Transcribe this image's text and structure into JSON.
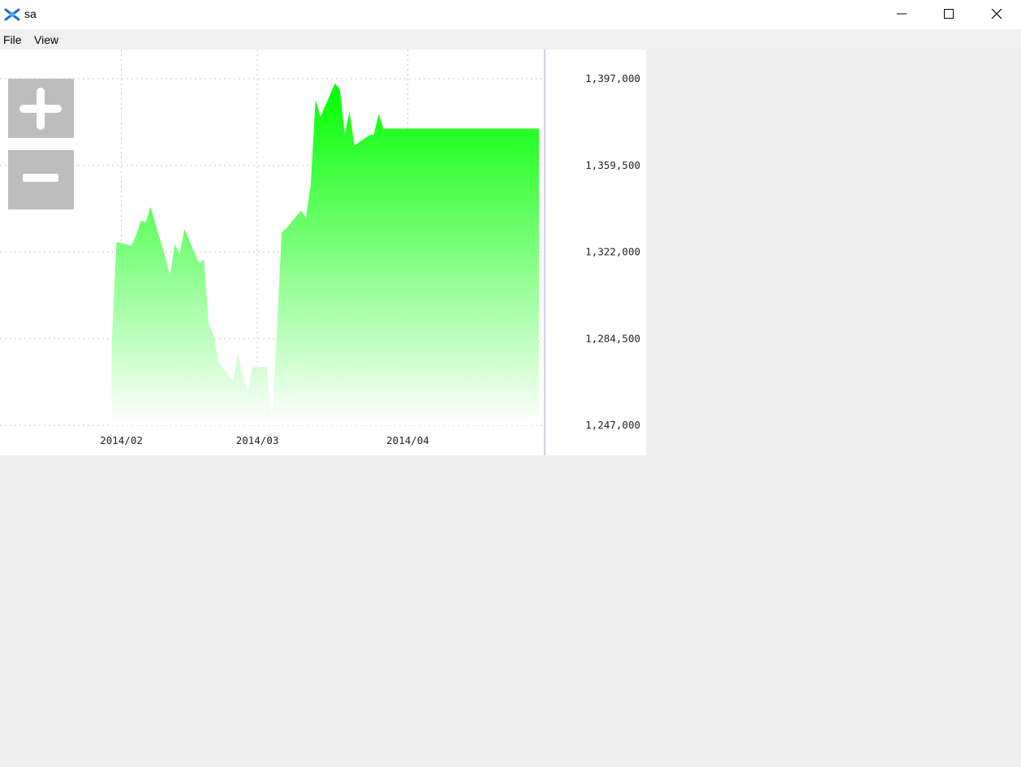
{
  "window": {
    "title": "sa",
    "controls": [
      "minimize-icon",
      "maximize-icon",
      "close-icon"
    ]
  },
  "menu": {
    "items": [
      {
        "label": "File"
      },
      {
        "label": "View"
      }
    ]
  },
  "toolbar": {
    "zoom_in_icon": "plus-icon",
    "zoom_out_icon": "minus-icon"
  },
  "chart_data": {
    "type": "area",
    "title": "",
    "xlabel": "",
    "ylabel": "",
    "x_tick_labels": [
      "2014/02",
      "2014/03",
      "2014/04"
    ],
    "x_ticks": [
      "2014-02-01",
      "2014-03-01",
      "2014-04-01"
    ],
    "xlim": [
      "2014-01-07",
      "2014-04-29"
    ],
    "y_tick_labels": [
      "1,397,000",
      "1,359,500",
      "1,322,000",
      "1,284,500",
      "1,247,000"
    ],
    "y_ticks": [
      1397000,
      1359500,
      1322000,
      1284500,
      1247000
    ],
    "ylim": [
      1247000,
      1397000
    ],
    "grid": true,
    "fill_gradient": [
      "#00ff00",
      "#ffffff"
    ],
    "series": [
      {
        "x": [
          "2014-01-30",
          "2014-01-31",
          "2014-02-03",
          "2014-02-04",
          "2014-02-05",
          "2014-02-06",
          "2014-02-07",
          "2014-02-10",
          "2014-02-11",
          "2014-02-12",
          "2014-02-13",
          "2014-02-14",
          "2014-02-17",
          "2014-02-18",
          "2014-02-19",
          "2014-02-20",
          "2014-02-21",
          "2014-02-24",
          "2014-02-25",
          "2014-02-26",
          "2014-02-27",
          "2014-02-28",
          "2014-03-03",
          "2014-03-04",
          "2014-03-05",
          "2014-03-06",
          "2014-03-07",
          "2014-03-10",
          "2014-03-11",
          "2014-03-12",
          "2014-03-13",
          "2014-03-14",
          "2014-03-17",
          "2014-03-18",
          "2014-03-19",
          "2014-03-20",
          "2014-03-21",
          "2014-03-24",
          "2014-03-25",
          "2014-03-26",
          "2014-03-27",
          "2014-03-28",
          "2014-03-31",
          "2014-04-01",
          "2014-04-02",
          "2014-04-03",
          "2014-04-04",
          "2014-04-07",
          "2014-04-08",
          "2014-04-09",
          "2014-04-10",
          "2014-04-11",
          "2014-04-14",
          "2014-04-15",
          "2014-04-16",
          "2014-04-17",
          "2014-04-18",
          "2014-04-21",
          "2014-04-22",
          "2014-04-23",
          "2014-04-24",
          "2014-04-25",
          "2014-04-28"
        ],
        "values": [
          1282500,
          1326400,
          1324800,
          1329000,
          1335500,
          1334800,
          1341500,
          1320100,
          1311800,
          1325500,
          1321000,
          1332000,
          1317200,
          1318800,
          1290400,
          1286500,
          1274300,
          1266000,
          1277600,
          1268400,
          1261400,
          1272300,
          1272300,
          1248000,
          1286000,
          1330500,
          1332300,
          1339900,
          1336700,
          1351200,
          1388000,
          1380500,
          1395000,
          1392300,
          1373400,
          1382700,
          1368100,
          1372500,
          1372800,
          1381700,
          1375400,
          1375400,
          1375400,
          1375400,
          1375400,
          1375400,
          1375400,
          1375400,
          1375400,
          1375400,
          1375400,
          1375400,
          1375400,
          1375400,
          1375400,
          1375400,
          1375400,
          1375400,
          1375400,
          1375400,
          1375400,
          1375400,
          1375400
        ]
      }
    ]
  }
}
